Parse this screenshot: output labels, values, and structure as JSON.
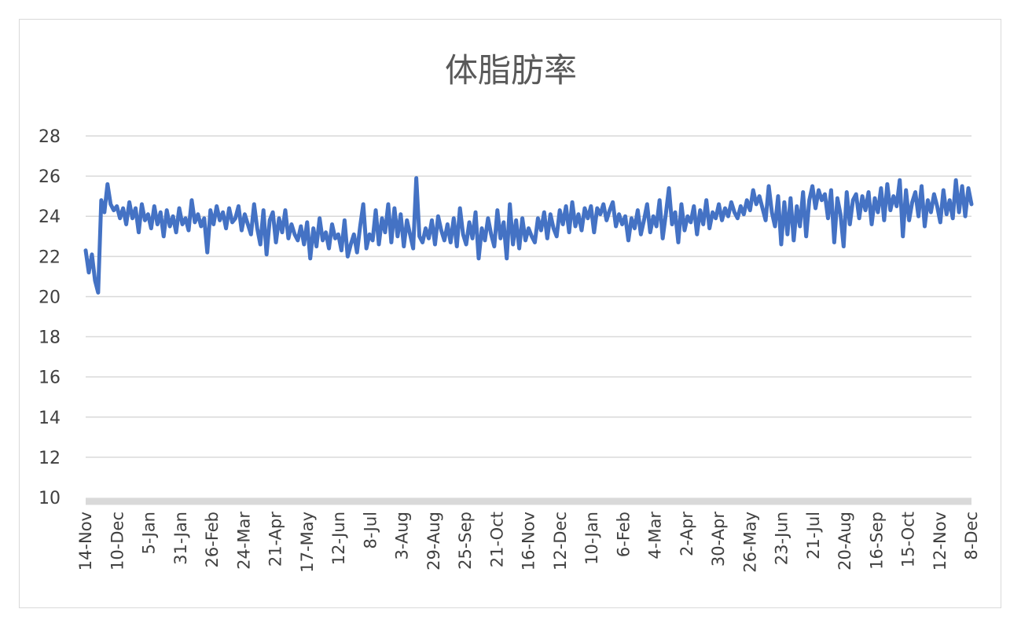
{
  "chart_data": {
    "type": "line",
    "title": "体脂肪率",
    "xlabel": "",
    "ylabel": "",
    "ylim": [
      10,
      28
    ],
    "yticks": [
      10,
      12,
      14,
      16,
      18,
      20,
      22,
      24,
      26,
      28
    ],
    "x_tick_labels": [
      "14-Nov",
      "10-Dec",
      "5-Jan",
      "31-Jan",
      "26-Feb",
      "24-Mar",
      "21-Apr",
      "17-May",
      "12-Jun",
      "8-Jul",
      "3-Aug",
      "29-Aug",
      "25-Sep",
      "21-Oct",
      "16-Nov",
      "12-Dec",
      "10-Jan",
      "6-Feb",
      "4-Mar",
      "2-Apr",
      "30-Apr",
      "26-May",
      "23-Jun",
      "21-Jul",
      "20-Aug",
      "16-Sep",
      "15-Oct",
      "12-Nov",
      "8-Dec"
    ],
    "grid": true,
    "legend": "none",
    "series_color": "#4472c4",
    "series": [
      {
        "values": [
          22.3,
          21.2,
          22.1,
          20.8,
          20.2,
          24.8,
          24.2,
          25.6,
          24.6,
          24.3,
          24.5,
          23.9,
          24.4,
          23.6,
          24.7,
          23.9,
          24.4,
          23.2,
          24.6,
          23.8,
          24.1,
          23.4,
          24.5,
          23.6,
          24.2,
          23.0,
          24.3,
          23.5,
          24.0,
          23.2,
          24.4,
          23.6,
          23.9,
          23.3,
          24.8,
          23.7,
          24.1,
          23.5,
          23.9,
          22.2,
          24.3,
          23.6,
          24.5,
          23.8,
          24.2,
          23.4,
          24.4,
          23.7,
          23.9,
          24.5,
          23.3,
          24.1,
          23.6,
          23.1,
          24.6,
          23.4,
          22.6,
          24.3,
          22.1,
          23.8,
          24.2,
          22.7,
          23.9,
          23.2,
          24.3,
          22.9,
          23.6,
          23.1,
          22.8,
          23.5,
          22.6,
          23.7,
          21.9,
          23.4,
          22.5,
          23.9,
          22.8,
          23.2,
          22.4,
          23.6,
          22.9,
          23.1,
          22.3,
          23.8,
          22.0,
          22.6,
          23.1,
          22.2,
          23.5,
          24.6,
          22.4,
          23.1,
          22.8,
          24.3,
          22.6,
          23.9,
          23.2,
          24.6,
          22.7,
          24.4,
          23.0,
          24.1,
          22.5,
          23.8,
          23.1,
          22.4,
          25.9,
          23.0,
          22.7,
          23.4,
          22.9,
          23.8,
          22.6,
          24.0,
          23.3,
          22.8,
          23.6,
          22.7,
          23.9,
          22.5,
          24.4,
          23.1,
          22.6,
          23.7,
          22.9,
          24.2,
          21.9,
          23.4,
          22.8,
          23.9,
          23.1,
          22.5,
          24.3,
          22.9,
          23.7,
          21.9,
          24.6,
          22.6,
          23.8,
          22.4,
          23.9,
          22.8,
          23.4,
          23.0,
          22.7,
          23.9,
          23.3,
          24.2,
          22.9,
          24.1,
          23.4,
          23.0,
          24.3,
          23.6,
          24.5,
          23.2,
          24.7,
          23.5,
          24.1,
          23.3,
          24.4,
          23.9,
          24.5,
          23.2,
          24.4,
          24.1,
          24.6,
          23.8,
          24.3,
          24.7,
          23.5,
          24.1,
          23.6,
          24.0,
          22.8,
          23.9,
          23.4,
          24.3,
          23.1,
          23.8,
          24.6,
          23.2,
          24.0,
          23.5,
          24.8,
          22.9,
          24.1,
          25.4,
          23.6,
          24.2,
          22.7,
          24.6,
          23.3,
          24.0,
          23.7,
          24.5,
          23.1,
          24.3,
          23.6,
          24.8,
          23.4,
          24.2,
          23.9,
          24.6,
          23.8,
          24.4,
          24.0,
          24.7,
          24.2,
          23.9,
          24.5,
          24.1,
          24.8,
          24.3,
          25.3,
          24.6,
          25.0,
          24.4,
          23.8,
          25.5,
          24.2,
          23.5,
          25.0,
          22.6,
          24.7,
          23.1,
          24.9,
          22.8,
          24.5,
          23.5,
          25.2,
          23.0,
          24.8,
          25.5,
          24.4,
          25.3,
          24.8,
          25.1,
          23.9,
          25.3,
          22.7,
          24.9,
          24.1,
          22.5,
          25.2,
          23.6,
          24.8,
          25.1,
          23.9,
          25.0,
          24.3,
          25.2,
          23.6,
          24.9,
          24.2,
          25.4,
          23.8,
          25.6,
          24.3,
          25.0,
          24.5,
          25.8,
          23.0,
          25.3,
          23.8,
          24.7,
          25.2,
          24.0,
          25.5,
          23.5,
          24.8,
          24.2,
          25.1,
          24.5,
          23.7,
          25.3,
          24.1,
          24.8,
          23.9,
          25.8,
          24.2,
          25.5,
          24.0,
          25.4,
          24.6
        ]
      }
    ]
  }
}
